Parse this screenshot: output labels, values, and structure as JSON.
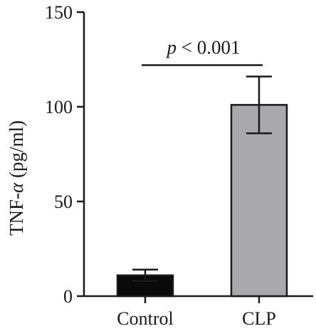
{
  "chart_data": {
    "type": "bar",
    "categories": [
      "Control",
      "CLP"
    ],
    "values": [
      11,
      101
    ],
    "errors": [
      3,
      15
    ],
    "colors": [
      "#0a0a0a",
      "#a8a8ad"
    ],
    "ylabel": "TNF-α (pg/ml)",
    "ylabel_prefix": "TNF-",
    "ylabel_symbol": "α",
    "ylabel_suffix": " (pg/ml)",
    "ylim": [
      0,
      150
    ],
    "yticks": [
      0,
      50,
      100,
      150
    ],
    "grid": false,
    "annotation": {
      "text": "p < 0.001",
      "p_symbol": "p",
      "rest": " < 0.001",
      "bracket_y": 122
    }
  }
}
